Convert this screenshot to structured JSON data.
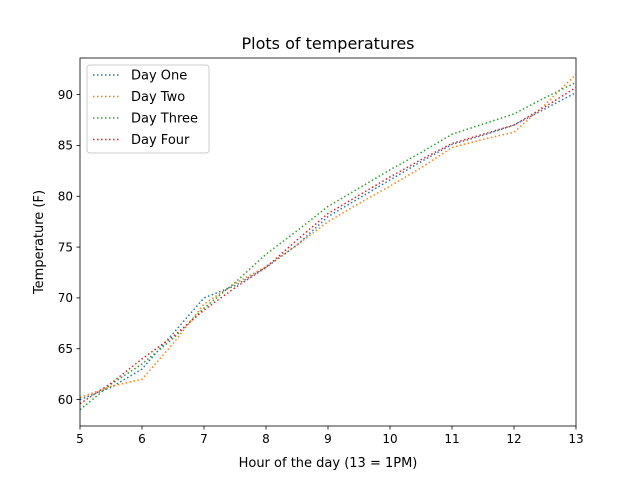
{
  "chart_data": {
    "type": "line",
    "title": "Plots of temperatures",
    "xlabel": "Hour of the day (13 = 1PM)",
    "ylabel": "Temperature (F)",
    "xlim": [
      5,
      13
    ],
    "ylim": [
      57.4,
      93.6
    ],
    "x_ticks": [
      5,
      6,
      7,
      8,
      9,
      10,
      11,
      12,
      13
    ],
    "y_ticks": [
      60,
      65,
      70,
      75,
      80,
      85,
      90
    ],
    "grid": false,
    "legend_position": "upper-left",
    "line_style": "dotted",
    "x": [
      5,
      5.5,
      6,
      6.5,
      7,
      7.5,
      8,
      8.5,
      9,
      9.5,
      10,
      10.5,
      11,
      11.5,
      12,
      12.5,
      13
    ],
    "series": [
      {
        "name": "Day One",
        "color": "#1f77b4",
        "values": [
          60.0,
          61.2,
          63.0,
          66.5,
          70.0,
          71.2,
          73.0,
          75.2,
          78.0,
          79.8,
          81.6,
          83.4,
          85.1,
          86.0,
          87.0,
          88.6,
          90.2
        ]
      },
      {
        "name": "Day Two",
        "color": "#ff7f0e",
        "values": [
          60.2,
          61.3,
          62.0,
          65.5,
          69.4,
          71.4,
          73.1,
          75.2,
          77.5,
          79.3,
          81.0,
          82.8,
          84.8,
          85.6,
          86.3,
          89.0,
          92.0
        ]
      },
      {
        "name": "Day Three",
        "color": "#2ca02c",
        "values": [
          59.0,
          61.5,
          63.5,
          66.0,
          69.0,
          71.5,
          74.3,
          76.6,
          79.0,
          80.8,
          82.6,
          84.3,
          86.1,
          87.1,
          88.1,
          89.7,
          91.2
        ]
      },
      {
        "name": "Day Four",
        "color": "#d62728",
        "values": [
          59.6,
          61.6,
          64.0,
          66.2,
          68.8,
          71.0,
          73.0,
          75.7,
          78.3,
          80.1,
          81.9,
          83.6,
          85.2,
          86.1,
          87.0,
          88.8,
          90.7
        ]
      }
    ]
  }
}
